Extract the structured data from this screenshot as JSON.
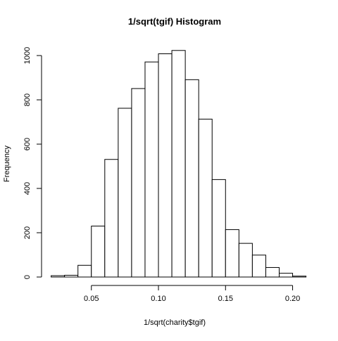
{
  "chart_data": {
    "type": "bar",
    "title": "1/sqrt(tgif) Histogram",
    "xlabel": "1/sqrt(charity$tgif)",
    "ylabel": "Frequency",
    "bin_width": 0.01,
    "bins_start": [
      0.02,
      0.03,
      0.04,
      0.05,
      0.06,
      0.07,
      0.08,
      0.09,
      0.1,
      0.11,
      0.12,
      0.13,
      0.14,
      0.15,
      0.16,
      0.17,
      0.18,
      0.19,
      0.2
    ],
    "values": [
      6,
      8,
      53,
      230,
      531,
      762,
      851,
      971,
      1008,
      1023,
      891,
      713,
      440,
      214,
      152,
      99,
      43,
      17,
      4
    ],
    "xlim": [
      0.02,
      0.21
    ],
    "ylim": [
      0,
      1000
    ],
    "x_ticks": [
      0.05,
      0.1,
      0.15,
      0.2
    ],
    "x_tick_labels": [
      "0.05",
      "0.10",
      "0.15",
      "0.20"
    ],
    "y_ticks": [
      0,
      200,
      400,
      600,
      800,
      1000
    ],
    "y_tick_labels": [
      "0",
      "200",
      "400",
      "600",
      "800",
      "1000"
    ],
    "bar_fill": "#ffffff",
    "bar_stroke": "#000000",
    "grid": false,
    "legend": "none"
  }
}
